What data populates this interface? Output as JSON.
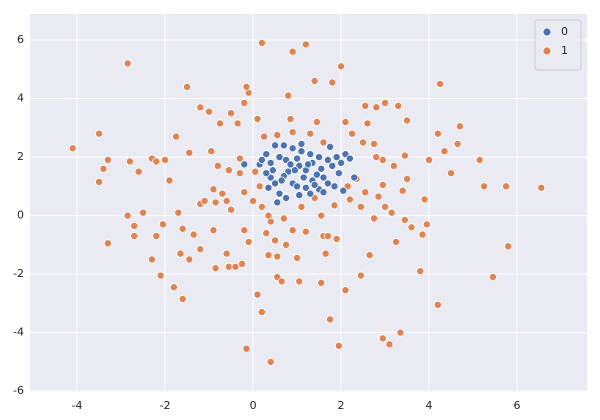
{
  "chart_data": {
    "type": "scatter",
    "xlim": [
      -5.07,
      7.59
    ],
    "ylim": [
      -6.03,
      6.89
    ],
    "xticks": [
      -4,
      -2,
      0,
      2,
      4,
      6
    ],
    "yticks": [
      -6,
      -4,
      -2,
      0,
      2,
      4,
      6
    ],
    "grid": true,
    "legend": "upper right",
    "series": [
      {
        "name": "0",
        "color": "#4c72b0",
        "x": [
          -0.2,
          0.15,
          0.3,
          0.4,
          0.45,
          0.5,
          0.6,
          0.7,
          0.75,
          0.8,
          0.9,
          1.0,
          1.05,
          1.1,
          1.2,
          1.3,
          1.35,
          1.45,
          1.5,
          1.55,
          1.6,
          1.7,
          1.75,
          1.8,
          1.9,
          1.95,
          2.0,
          2.1,
          2.2,
          2.05,
          1.85,
          1.7,
          1.5,
          1.35,
          1.2,
          1.05,
          0.9,
          0.75,
          0.6,
          0.5,
          0.4,
          0.3,
          0.55,
          0.7,
          0.95,
          1.15,
          1.4,
          1.25,
          0.85,
          0.65,
          1.0,
          1.6,
          0.35,
          1.3,
          2.3,
          0.2,
          1.1
        ],
        "values": [
          1.75,
          1.75,
          2.1,
          1.8,
          1.55,
          2.4,
          2.0,
          2.4,
          1.9,
          1.5,
          2.3,
          1.95,
          1.7,
          2.2,
          1.55,
          2.1,
          1.8,
          1.4,
          2.0,
          1.6,
          1.3,
          1.9,
          2.35,
          1.7,
          2.0,
          1.45,
          1.8,
          2.1,
          1.95,
          0.85,
          1.0,
          1.1,
          0.9,
          1.2,
          0.95,
          0.7,
          1.1,
          0.6,
          0.75,
          1.1,
          1.3,
          1.45,
          0.45,
          1.35,
          1.55,
          1.3,
          1.05,
          1.75,
          1.75,
          1.2,
          1.0,
          0.8,
          0.95,
          0.75,
          1.3,
          1.9,
          2.45
        ]
      },
      {
        "name": "1",
        "color": "#dd8452",
        "x": [
          -4.1,
          -3.5,
          -3.3,
          -3.4,
          -3.5,
          -2.85,
          -3.3,
          -2.85,
          -2.7,
          -2.7,
          -2.5,
          -2.8,
          -2.6,
          -2.3,
          -2.2,
          -2.0,
          -1.9,
          -2.05,
          -2.2,
          -2.3,
          -2.1,
          -1.8,
          -1.6,
          -1.7,
          -1.6,
          -1.65,
          -1.45,
          -1.35,
          -1.2,
          -1.2,
          -1.1,
          -1.75,
          -1.45,
          -1.5,
          -1.2,
          -1.0,
          -0.75,
          -0.5,
          -0.35,
          -0.2,
          -0.1,
          -0.15,
          -0.95,
          -0.8,
          -0.55,
          -0.9,
          -0.7,
          -0.85,
          -0.6,
          -0.5,
          -0.9,
          -0.6,
          -0.55,
          -0.4,
          -0.85,
          -0.25,
          -0.2,
          -0.1,
          -0.15,
          0.2,
          0.1,
          0.4,
          0.55,
          0.65,
          0.35,
          0.5,
          0.75,
          0.4,
          0.7,
          0.9,
          1.0,
          1.05,
          1.55,
          1.6,
          1.7,
          1.65,
          1.9,
          2.1,
          1.75,
          1.95,
          2.45,
          2.65,
          2.95,
          3.1,
          3.35,
          2.75,
          3.0,
          3.25,
          3.45,
          3.6,
          3.8,
          3.85,
          3.95,
          4.2,
          5.45,
          5.8,
          6.55,
          5.75,
          5.25,
          5.15,
          4.5,
          4.35,
          4.65,
          4.7,
          4.2,
          4.25,
          4.0,
          3.5,
          3.4,
          3.45,
          3.3,
          3.5,
          3.0,
          2.8,
          2.55,
          2.6,
          2.25,
          2.1,
          2.5,
          2.75,
          2.95,
          3.2,
          2.95,
          2.85,
          2.55,
          2.45,
          2.2,
          2.15,
          2.35,
          2.0,
          1.8,
          1.4,
          1.45,
          1.6,
          1.3,
          0.8,
          0.9,
          1.2,
          0.2,
          0.1,
          0.85,
          0.9,
          0.25,
          0.55,
          -0.3,
          0.0,
          0.2,
          0.35,
          0.15,
          0.05,
          -0.2,
          1.1,
          1.4,
          1.85,
          1.55,
          0.55,
          0.3,
          1.2,
          -0.3,
          2.8,
          3.9,
          3.15
        ],
        "values": [
          2.3,
          2.8,
          1.9,
          1.6,
          1.15,
          5.2,
          -0.95,
          0.0,
          -0.35,
          -0.7,
          0.1,
          1.85,
          1.5,
          1.95,
          1.85,
          1.9,
          1.2,
          -0.3,
          -0.7,
          -1.5,
          -2.05,
          -2.45,
          -2.85,
          0.1,
          -0.45,
          -1.3,
          -1.5,
          -0.65,
          -1.15,
          0.4,
          0.5,
          2.7,
          2.15,
          4.4,
          3.7,
          3.55,
          3.15,
          3.5,
          3.15,
          3.85,
          4.2,
          4.4,
          2.2,
          1.7,
          1.55,
          0.9,
          0.75,
          0.45,
          0.5,
          0.2,
          -0.5,
          -1.3,
          -1.75,
          -1.75,
          -1.8,
          -1.65,
          -0.5,
          -0.9,
          -4.55,
          -3.3,
          -2.7,
          -5.0,
          -2.1,
          -2.25,
          -1.35,
          -0.85,
          -1.0,
          -0.2,
          -0.1,
          -0.5,
          -1.45,
          -2.25,
          -2.3,
          -0.7,
          -0.7,
          -1.3,
          -0.8,
          -2.55,
          -3.55,
          -4.45,
          -2.05,
          -1.35,
          -4.2,
          -4.4,
          -4.0,
          -0.1,
          0.3,
          -0.9,
          -0.15,
          -0.4,
          -1.9,
          -0.65,
          -0.3,
          -3.05,
          -2.1,
          -1.05,
          0.95,
          1.0,
          1.0,
          1.9,
          1.45,
          2.2,
          2.45,
          3.05,
          2.8,
          4.5,
          1.9,
          1.25,
          0.85,
          2.05,
          3.75,
          3.25,
          3.85,
          3.7,
          3.75,
          3.15,
          2.8,
          3.2,
          2.5,
          2.45,
          1.9,
          1.7,
          1.05,
          0.65,
          0.8,
          0.3,
          0.55,
          1.0,
          1.25,
          5.1,
          4.55,
          4.6,
          3.2,
          2.5,
          2.8,
          4.1,
          5.6,
          5.85,
          5.9,
          3.3,
          3.3,
          2.85,
          2.7,
          2.75,
          1.95,
          0.5,
          0.3,
          0.0,
          1.0,
          1.5,
          0.8,
          0.3,
          0.6,
          0.35,
          0.0,
          -1.4,
          -0.6,
          -0.55,
          1.45,
          2.0,
          0.55,
          0.1
        ]
      }
    ]
  }
}
